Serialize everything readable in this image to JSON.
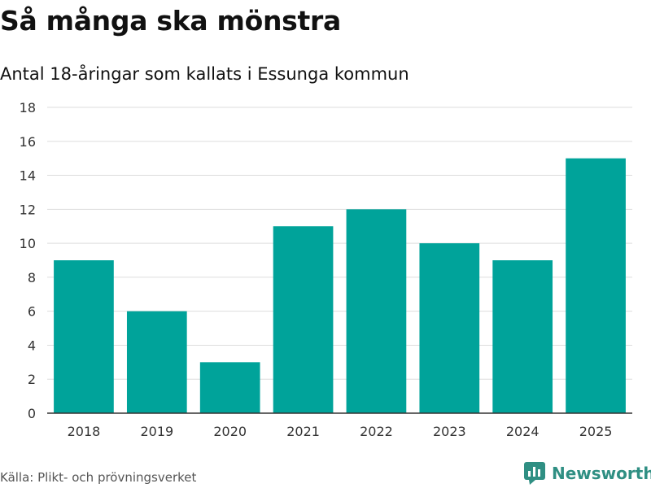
{
  "title": "Så många ska mönstra",
  "subtitle": "Antal 18-åringar som kallats i Essunga kommun",
  "source": "Källa: Plikt- och prövningsverket",
  "brand": {
    "name": "Newsworthy",
    "icon": "newsworthy-logo-icon"
  },
  "colors": {
    "bar": "#00a39a",
    "grid": "#dddddd",
    "axis": "#333333",
    "brand": "#2f8f83"
  },
  "chart_data": {
    "type": "bar",
    "title": "Så många ska mönstra",
    "subtitle": "Antal 18-åringar som kallats i Essunga kommun",
    "xlabel": "",
    "ylabel": "",
    "categories": [
      "2018",
      "2019",
      "2020",
      "2021",
      "2022",
      "2023",
      "2024",
      "2025"
    ],
    "values": [
      9,
      6,
      3,
      11,
      12,
      10,
      9,
      15
    ],
    "ylim": [
      0,
      18
    ],
    "yticks": [
      0,
      2,
      4,
      6,
      8,
      10,
      12,
      14,
      16,
      18
    ],
    "grid": true,
    "legend": "none"
  }
}
